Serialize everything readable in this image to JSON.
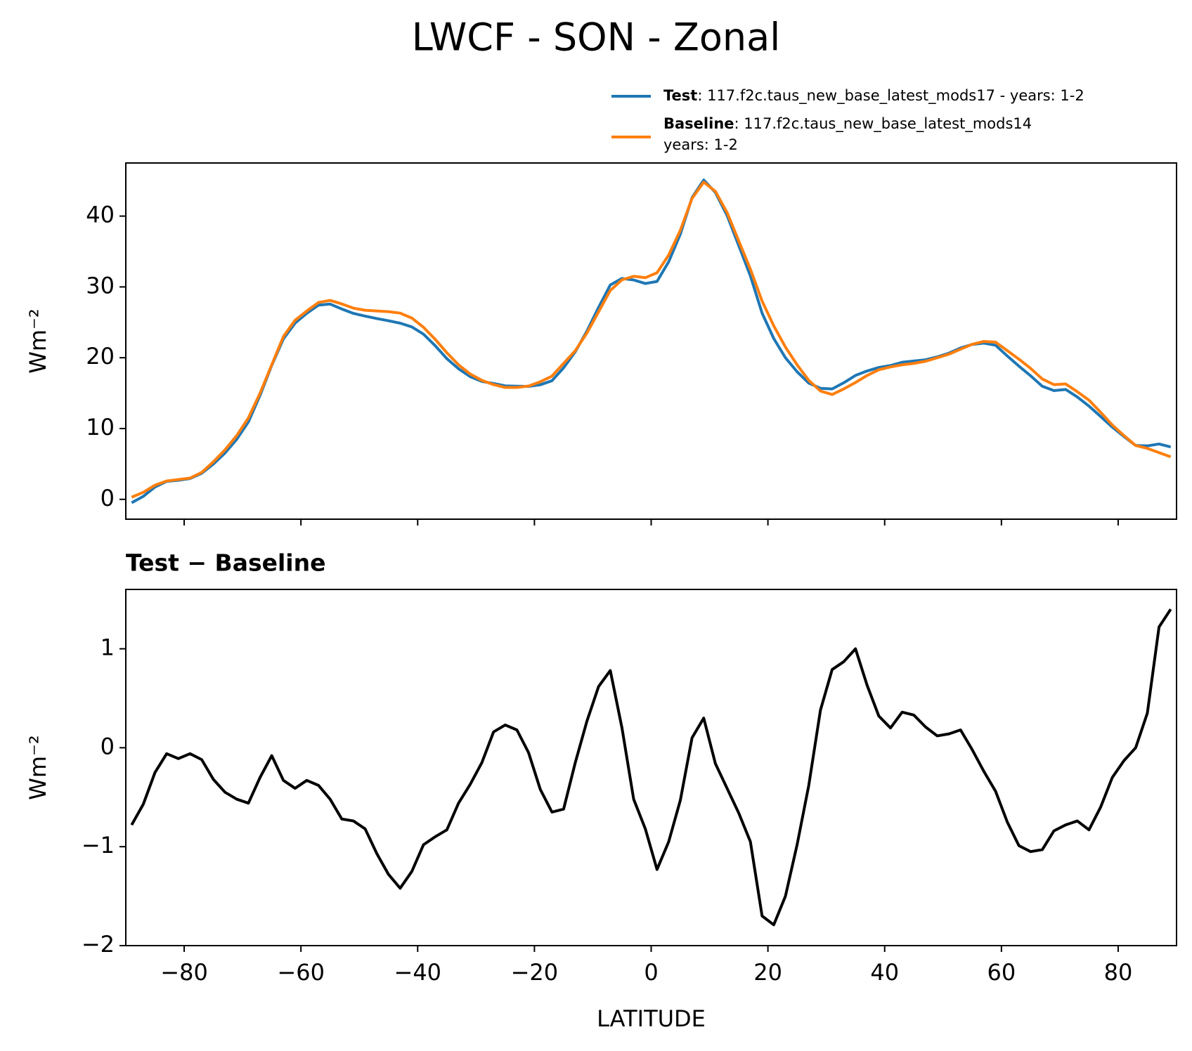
{
  "chart_data": [
    {
      "type": "line",
      "title": "LWCF - SON - Zonal",
      "ylabel": "Wm⁻²",
      "legend": "upper right",
      "x": [
        -89,
        -87,
        -85,
        -83,
        -81,
        -79,
        -77,
        -75,
        -73,
        -71,
        -69,
        -67,
        -65,
        -63,
        -61,
        -59,
        -57,
        -55,
        -53,
        -51,
        -49,
        -47,
        -45,
        -43,
        -41,
        -39,
        -37,
        -35,
        -33,
        -31,
        -29,
        -27,
        -25,
        -23,
        -21,
        -19,
        -17,
        -15,
        -13,
        -11,
        -9,
        -7,
        -5,
        -3,
        -1,
        1,
        3,
        5,
        7,
        9,
        11,
        13,
        15,
        17,
        19,
        21,
        23,
        25,
        27,
        29,
        31,
        33,
        35,
        37,
        39,
        41,
        43,
        45,
        47,
        49,
        51,
        53,
        55,
        57,
        59,
        61,
        63,
        65,
        67,
        69,
        71,
        73,
        75,
        77,
        79,
        81,
        83,
        85,
        87,
        89
      ],
      "series": [
        {
          "name": "Test",
          "description": [
            ": 117.f2c.taus_new_base_latest_mods17 - years: 1-2"
          ],
          "color": "#1f77b4",
          "values": [
            -0.48,
            0.43,
            1.75,
            2.54,
            2.69,
            2.94,
            3.68,
            4.98,
            6.55,
            8.48,
            10.94,
            14.7,
            18.92,
            22.67,
            24.89,
            26.27,
            27.42,
            27.58,
            26.88,
            26.26,
            25.88,
            25.53,
            25.22,
            24.88,
            24.35,
            23.32,
            21.7,
            19.87,
            18.44,
            17.33,
            16.65,
            16.36,
            16.03,
            15.98,
            15.95,
            16.18,
            16.75,
            18.58,
            20.85,
            23.77,
            27.12,
            30.28,
            31.2,
            30.98,
            30.48,
            30.77,
            33.55,
            37.47,
            42.6,
            45.1,
            43.34,
            40.09,
            35.84,
            31.55,
            26.3,
            22.71,
            20.0,
            18.02,
            16.42,
            15.68,
            15.59,
            16.47,
            17.5,
            18.13,
            18.62,
            18.9,
            19.36,
            19.53,
            19.71,
            20.12,
            20.64,
            21.38,
            21.88,
            22.06,
            21.76,
            20.25,
            18.81,
            17.45,
            15.97,
            15.36,
            15.52,
            14.46,
            13.17,
            11.7,
            10.2,
            8.87,
            7.6,
            7.55,
            7.82,
            7.4
          ]
        },
        {
          "name": "Baseline",
          "description": [
            ": 117.f2c.taus_new_base_latest_mods14",
            "years: 1-2"
          ],
          "color": "#ff7f0e",
          "values": [
            0.3,
            1.0,
            2.0,
            2.6,
            2.8,
            3.0,
            3.8,
            5.3,
            7.0,
            9.0,
            11.5,
            15.0,
            19.0,
            23.0,
            25.3,
            26.6,
            27.8,
            28.1,
            27.6,
            27.0,
            26.7,
            26.6,
            26.5,
            26.3,
            25.6,
            24.3,
            22.6,
            20.7,
            19.0,
            17.7,
            16.8,
            16.2,
            15.8,
            15.8,
            16.0,
            16.6,
            17.4,
            19.2,
            21.0,
            23.5,
            26.5,
            29.5,
            31.0,
            31.5,
            31.3,
            32.0,
            34.5,
            38.0,
            42.5,
            44.8,
            43.5,
            40.5,
            36.5,
            32.5,
            28.0,
            24.5,
            21.5,
            19.0,
            16.8,
            15.3,
            14.8,
            15.6,
            16.5,
            17.5,
            18.3,
            18.7,
            19.0,
            19.2,
            19.5,
            20.0,
            20.5,
            21.2,
            21.9,
            22.3,
            22.2,
            21.0,
            19.8,
            18.5,
            17.0,
            16.2,
            16.3,
            15.2,
            14.0,
            12.3,
            10.5,
            9.0,
            7.6,
            7.2,
            6.6,
            6.0
          ]
        }
      ],
      "xlim": [
        -90,
        90
      ],
      "xticks": [
        -80,
        -60,
        -40,
        -20,
        0,
        20,
        40,
        60,
        80
      ],
      "ylim": [
        -2.8,
        47.5
      ],
      "yticks": [
        0,
        10,
        20,
        30,
        40
      ]
    },
    {
      "type": "line",
      "title": "Test − Baseline",
      "ylabel": "Wm⁻²",
      "xlabel": "LATITUDE",
      "x": [
        -89,
        -87,
        -85,
        -83,
        -81,
        -79,
        -77,
        -75,
        -73,
        -71,
        -69,
        -67,
        -65,
        -63,
        -61,
        -59,
        -57,
        -55,
        -53,
        -51,
        -49,
        -47,
        -45,
        -43,
        -41,
        -39,
        -37,
        -35,
        -33,
        -31,
        -29,
        -27,
        -25,
        -23,
        -21,
        -19,
        -17,
        -15,
        -13,
        -11,
        -9,
        -7,
        -5,
        -3,
        -1,
        1,
        3,
        5,
        7,
        9,
        11,
        13,
        15,
        17,
        19,
        21,
        23,
        25,
        27,
        29,
        31,
        33,
        35,
        37,
        39,
        41,
        43,
        45,
        47,
        49,
        51,
        53,
        55,
        57,
        59,
        61,
        63,
        65,
        67,
        69,
        71,
        73,
        75,
        77,
        79,
        81,
        83,
        85,
        87,
        89
      ],
      "color": "#000000",
      "values": [
        -0.78,
        -0.57,
        -0.25,
        -0.06,
        -0.11,
        -0.06,
        -0.12,
        -0.32,
        -0.45,
        -0.52,
        -0.56,
        -0.3,
        -0.08,
        -0.33,
        -0.41,
        -0.33,
        -0.38,
        -0.52,
        -0.72,
        -0.74,
        -0.82,
        -1.07,
        -1.28,
        -1.42,
        -1.25,
        -0.98,
        -0.9,
        -0.83,
        -0.56,
        -0.37,
        -0.15,
        0.16,
        0.23,
        0.18,
        -0.05,
        -0.42,
        -0.65,
        -0.62,
        -0.15,
        0.27,
        0.62,
        0.78,
        0.2,
        -0.52,
        -0.82,
        -1.23,
        -0.95,
        -0.53,
        0.1,
        0.3,
        -0.16,
        -0.41,
        -0.66,
        -0.95,
        -1.7,
        -1.79,
        -1.5,
        -0.98,
        -0.38,
        0.38,
        0.79,
        0.87,
        1.0,
        0.63,
        0.32,
        0.2,
        0.36,
        0.33,
        0.21,
        0.12,
        0.14,
        0.18,
        -0.02,
        -0.24,
        -0.44,
        -0.75,
        -0.99,
        -1.05,
        -1.03,
        -0.84,
        -0.78,
        -0.74,
        -0.83,
        -0.6,
        -0.3,
        -0.13,
        0.0,
        0.35,
        1.22,
        1.4
      ],
      "xlim": [
        -90,
        90
      ],
      "xticks": [
        {
          "value": -80,
          "label": "−80"
        },
        {
          "value": -60,
          "label": "−60"
        },
        {
          "value": -40,
          "label": "−40"
        },
        {
          "value": -20,
          "label": "−20"
        },
        0,
        20,
        40,
        60,
        80
      ],
      "ylim": [
        -2.0,
        1.6
      ],
      "yticks": [
        {
          "value": -2,
          "label": "−2"
        },
        {
          "value": -1,
          "label": "−1"
        },
        0,
        1
      ]
    }
  ]
}
